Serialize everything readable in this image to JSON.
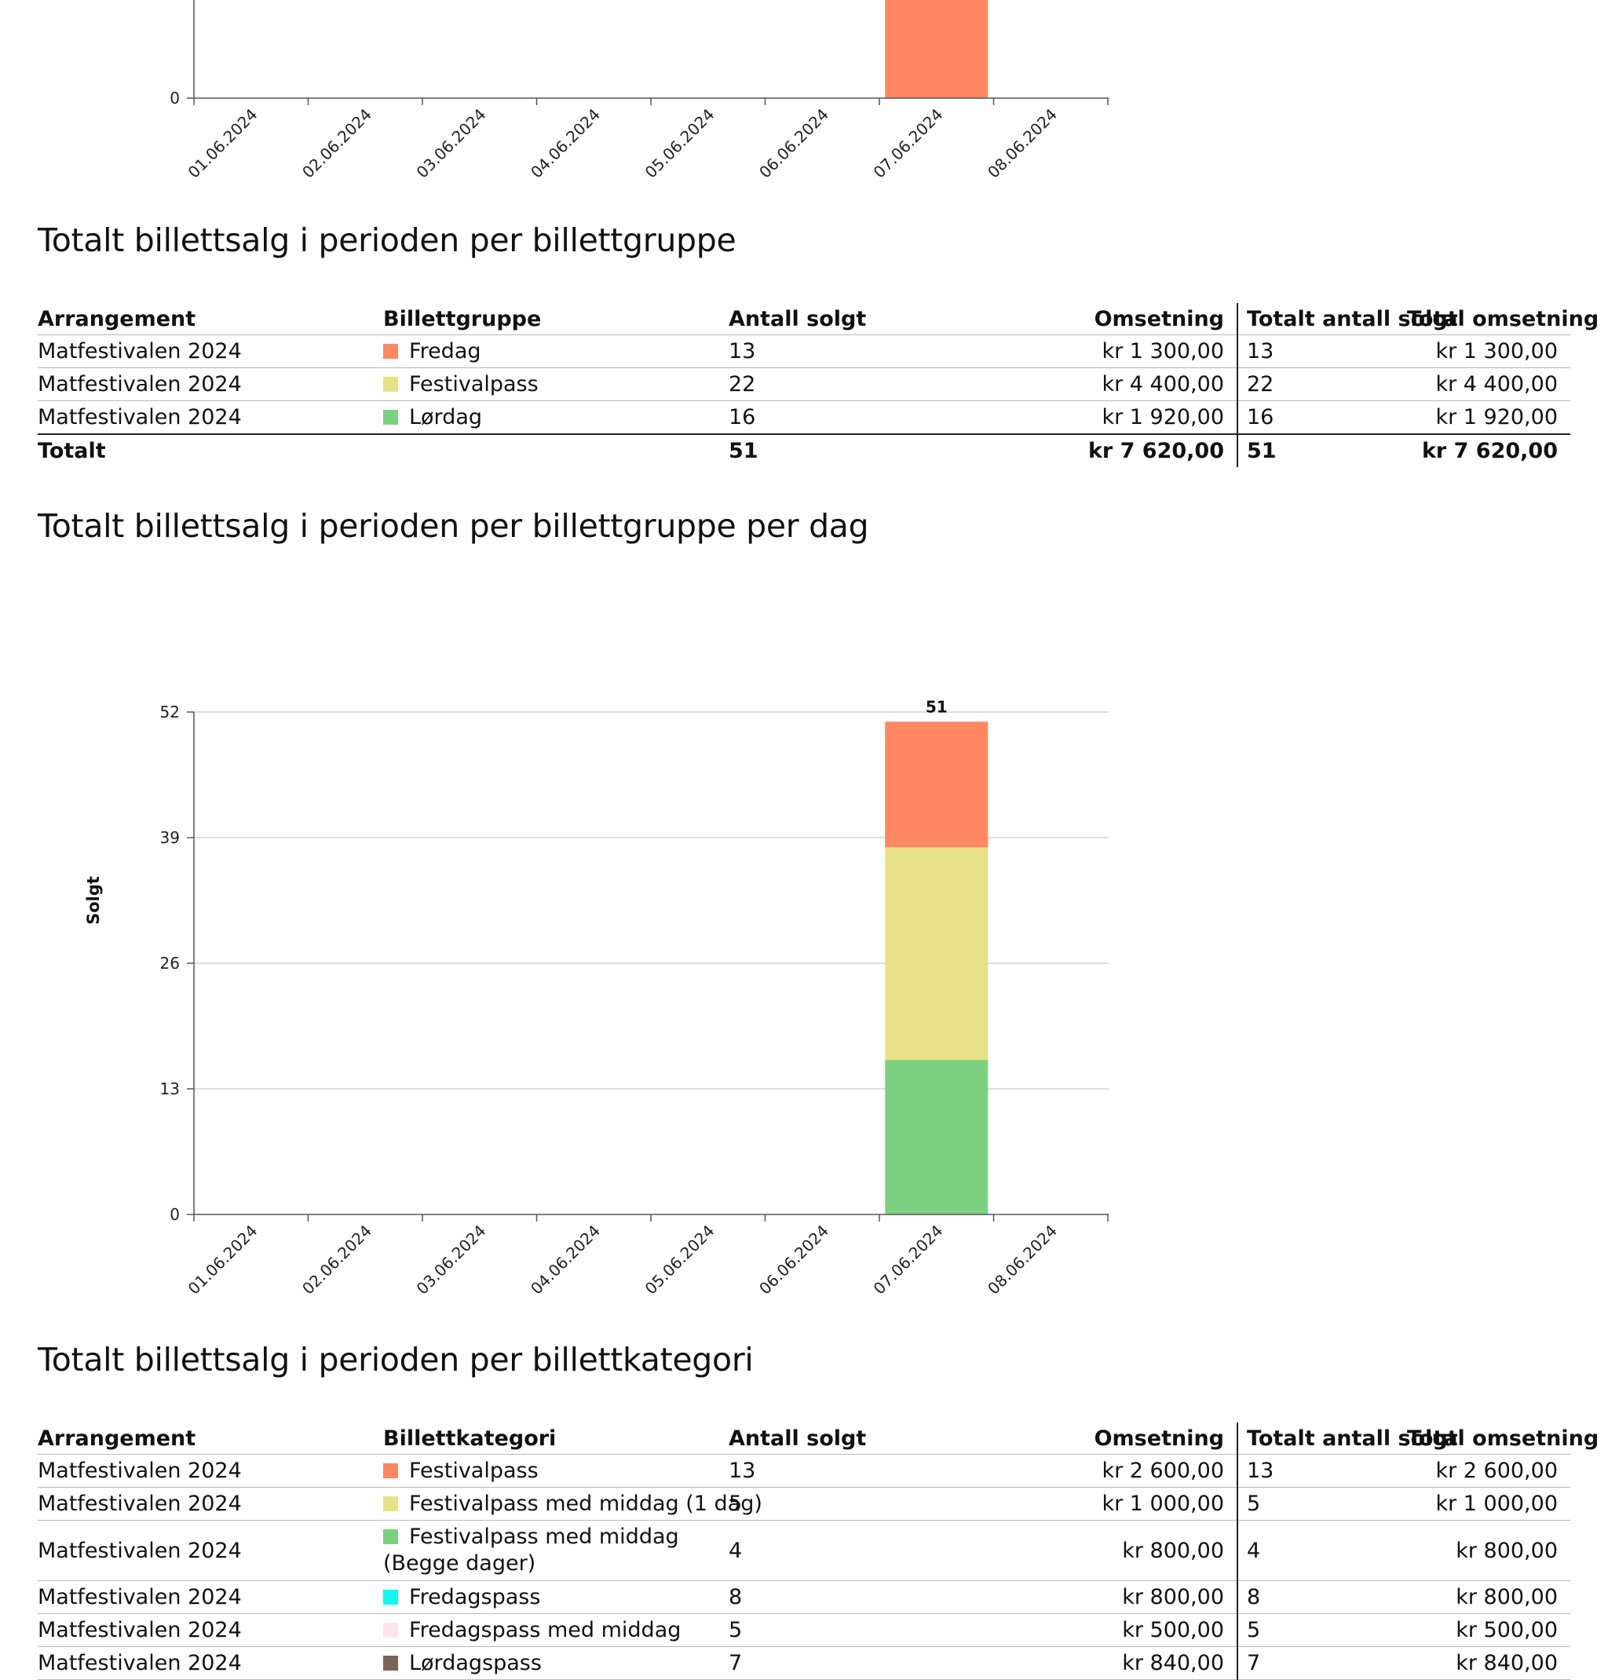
{
  "top_chart": {
    "tick_labels": [
      "01.06.2024",
      "02.06.2024",
      "03.06.2024",
      "04.06.2024",
      "05.06.2024",
      "06.06.2024",
      "07.06.2024",
      "08.06.2024"
    ],
    "y_zero_label": "0"
  },
  "section1": {
    "title": "Totalt billettsalg i perioden per billettgruppe",
    "headers": {
      "arrangement": "Arrangement",
      "group": "Billettgruppe",
      "sold": "Antall solgt",
      "revenue": "Omsetning",
      "total_sold": "Totalt antall solgt",
      "total_revenue": "Total omsetning"
    },
    "rows": [
      {
        "event": "Matfestivalen 2024",
        "group": "Fredag",
        "sold": "13",
        "revenue": "kr 1 300,00",
        "total_sold": "13",
        "total_revenue": "kr 1 300,00"
      },
      {
        "event": "Matfestivalen 2024",
        "group": "Festivalpass",
        "sold": "22",
        "revenue": "kr 4 400,00",
        "total_sold": "22",
        "total_revenue": "kr 4 400,00"
      },
      {
        "event": "Matfestivalen 2024",
        "group": "Lørdag",
        "sold": "16",
        "revenue": "kr 1 920,00",
        "total_sold": "16",
        "total_revenue": "kr 1 920,00"
      }
    ],
    "total": {
      "label": "Totalt",
      "sold": "51",
      "revenue": "kr 7 620,00",
      "total_sold": "51",
      "total_revenue": "kr 7 620,00"
    }
  },
  "section2": {
    "title": "Totalt billettsalg i perioden per billettgruppe per dag"
  },
  "section3": {
    "title": "Totalt billettsalg i perioden per billettkategori",
    "headers": {
      "arrangement": "Arrangement",
      "category": "Billettkategori",
      "sold": "Antall solgt",
      "revenue": "Omsetning",
      "total_sold": "Totalt antall solgt",
      "total_revenue": "Total omsetning"
    },
    "rows": [
      {
        "event": "Matfestivalen 2024",
        "category": "Festivalpass",
        "sold": "13",
        "revenue": "kr 2 600,00",
        "total_sold": "13",
        "total_revenue": "kr 2 600,00"
      },
      {
        "event": "Matfestivalen 2024",
        "category": "Festivalpass med middag (1 dag)",
        "sold": "5",
        "revenue": "kr 1 000,00",
        "total_sold": "5",
        "total_revenue": "kr 1 000,00"
      },
      {
        "event": "Matfestivalen 2024",
        "category": "Festivalpass med middag (Begge dager)",
        "sold": "4",
        "revenue": "kr 800,00",
        "total_sold": "4",
        "total_revenue": "kr 800,00"
      },
      {
        "event": "Matfestivalen 2024",
        "category": "Fredagspass",
        "sold": "8",
        "revenue": "kr 800,00",
        "total_sold": "8",
        "total_revenue": "kr 800,00"
      },
      {
        "event": "Matfestivalen 2024",
        "category": "Fredagspass med middag",
        "sold": "5",
        "revenue": "kr 500,00",
        "total_sold": "5",
        "total_revenue": "kr 500,00"
      },
      {
        "event": "Matfestivalen 2024",
        "category": "Lørdagspass",
        "sold": "7",
        "revenue": "kr 840,00",
        "total_sold": "7",
        "total_revenue": "kr 840,00"
      }
    ]
  },
  "colors": {
    "fredag": "#ff8761",
    "festivalpass": "#e7e287",
    "lordag": "#7ed081",
    "cyan": "#14f7f1",
    "pink": "#fde4ec",
    "brown": "#7d6354"
  },
  "chart_data": {
    "type": "bar",
    "stacked": true,
    "ylabel": "Solgt",
    "yticks": [
      0,
      13,
      26,
      39,
      52
    ],
    "ylim": [
      0,
      52
    ],
    "categories": [
      "01.06.2024",
      "02.06.2024",
      "03.06.2024",
      "04.06.2024",
      "05.06.2024",
      "06.06.2024",
      "07.06.2024",
      "08.06.2024"
    ],
    "series": [
      {
        "color": "#7ed081",
        "values": [
          0,
          0,
          0,
          0,
          0,
          0,
          16,
          0
        ]
      },
      {
        "color": "#e7e287",
        "values": [
          0,
          0,
          0,
          0,
          0,
          0,
          22,
          0
        ]
      },
      {
        "color": "#ff8761",
        "values": [
          0,
          0,
          0,
          0,
          0,
          0,
          13,
          0
        ]
      }
    ],
    "total_labels": [
      "",
      "",
      "",
      "",
      "",
      "",
      "51",
      ""
    ],
    "grid": true
  }
}
